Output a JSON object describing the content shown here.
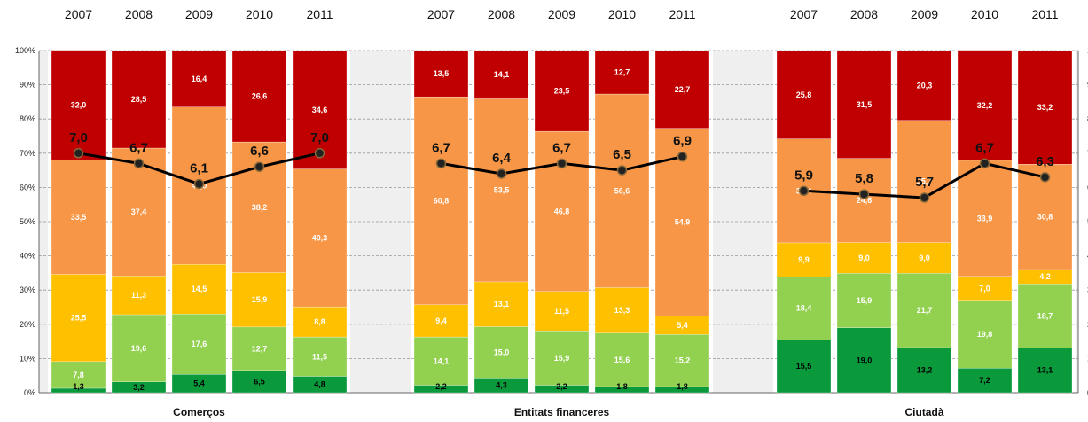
{
  "chart_data": {
    "type": "bar",
    "stacked": true,
    "normalized": true,
    "ylim": [
      0,
      100
    ],
    "y_ticks": [
      "0%",
      "10%",
      "20%",
      "30%",
      "40%",
      "50%",
      "60%",
      "70%",
      "80%",
      "90%",
      "100%"
    ],
    "grid": true,
    "colors": [
      "#0a9a3c",
      "#92d050",
      "#ffc000",
      "#f79646",
      "#c00000"
    ],
    "line_color": "#000000",
    "groups": [
      {
        "name": "Comerços",
        "years": [
          "2007",
          "2008",
          "2009",
          "2010",
          "2011"
        ],
        "stacks": [
          [
            1.3,
            7.8,
            25.5,
            33.5,
            32.0
          ],
          [
            3.2,
            19.6,
            11.3,
            37.4,
            28.5
          ],
          [
            5.4,
            17.6,
            14.5,
            46.0,
            16.4
          ],
          [
            6.5,
            12.7,
            15.9,
            38.2,
            26.6
          ],
          [
            4.8,
            11.5,
            8.8,
            40.3,
            34.6
          ]
        ],
        "labels": [
          [
            "1,3",
            "7,8",
            "25,5",
            "33,5",
            "32,0"
          ],
          [
            "3,2",
            "19,6",
            "11,3",
            "37,4",
            "28,5"
          ],
          [
            "5,4",
            "17,6",
            "14,5",
            "46,0",
            "16,4"
          ],
          [
            "6,5",
            "12,7",
            "15,9",
            "38,2",
            "26,6"
          ],
          [
            "4,8",
            "11,5",
            "8,8",
            "40,3",
            "34,6"
          ]
        ],
        "avg": [
          7.0,
          6.7,
          6.1,
          6.6,
          7.0
        ],
        "avg_labels": [
          "7,0",
          "6,7",
          "6,1",
          "6,6",
          "7,0"
        ]
      },
      {
        "name": "Entitats financeres",
        "years": [
          "2007",
          "2008",
          "2009",
          "2010",
          "2011"
        ],
        "stacks": [
          [
            2.2,
            14.1,
            9.4,
            60.8,
            13.5
          ],
          [
            4.3,
            15.0,
            13.1,
            53.5,
            14.1
          ],
          [
            2.2,
            15.9,
            11.5,
            46.8,
            23.5
          ],
          [
            1.8,
            15.6,
            13.3,
            56.6,
            12.7
          ],
          [
            1.8,
            15.2,
            5.4,
            54.9,
            22.7
          ]
        ],
        "labels": [
          [
            "2,2",
            "14,1",
            "9,4",
            "60,8",
            "13,5"
          ],
          [
            "4,3",
            "15,0",
            "13,1",
            "53,5",
            "14,1"
          ],
          [
            "2,2",
            "15,9",
            "11,5",
            "46,8",
            "23,5"
          ],
          [
            "1,8",
            "15,6",
            "13,3",
            "56,6",
            "12,7"
          ],
          [
            "1,8",
            "15,2",
            "5,4",
            "54,9",
            "22,7"
          ]
        ],
        "avg": [
          6.7,
          6.4,
          6.7,
          6.5,
          6.9
        ],
        "avg_labels": [
          "6,7",
          "6,4",
          "6,7",
          "6,5",
          "6,9"
        ]
      },
      {
        "name": "Ciutadà",
        "years": [
          "2007",
          "2008",
          "2009",
          "2010",
          "2011"
        ],
        "stacks": [
          [
            15.5,
            18.4,
            9.9,
            30.4,
            25.8
          ],
          [
            19.0,
            15.9,
            9.0,
            24.6,
            31.5
          ],
          [
            13.2,
            21.7,
            9.0,
            35.7,
            20.3
          ],
          [
            7.2,
            19.8,
            7.0,
            33.9,
            32.2
          ],
          [
            13.1,
            18.7,
            4.2,
            30.8,
            33.2
          ]
        ],
        "labels": [
          [
            "15,5",
            "18,4",
            "9,9",
            "30,4",
            "25,8"
          ],
          [
            "19,0",
            "15,9",
            "9,0",
            "24,6",
            "31,5"
          ],
          [
            "13,2",
            "21,7",
            "9,0",
            "35,7",
            "20,3"
          ],
          [
            "7,2",
            "19,8",
            "7,0",
            "33,9",
            "32,2"
          ],
          [
            "13,1",
            "18,7",
            "4,2",
            "30,8",
            "33,2"
          ]
        ],
        "avg": [
          5.9,
          5.8,
          5.7,
          6.7,
          6.3
        ],
        "avg_labels": [
          "5,9",
          "5,8",
          "5,7",
          "6,7",
          "6,3"
        ]
      }
    ]
  }
}
